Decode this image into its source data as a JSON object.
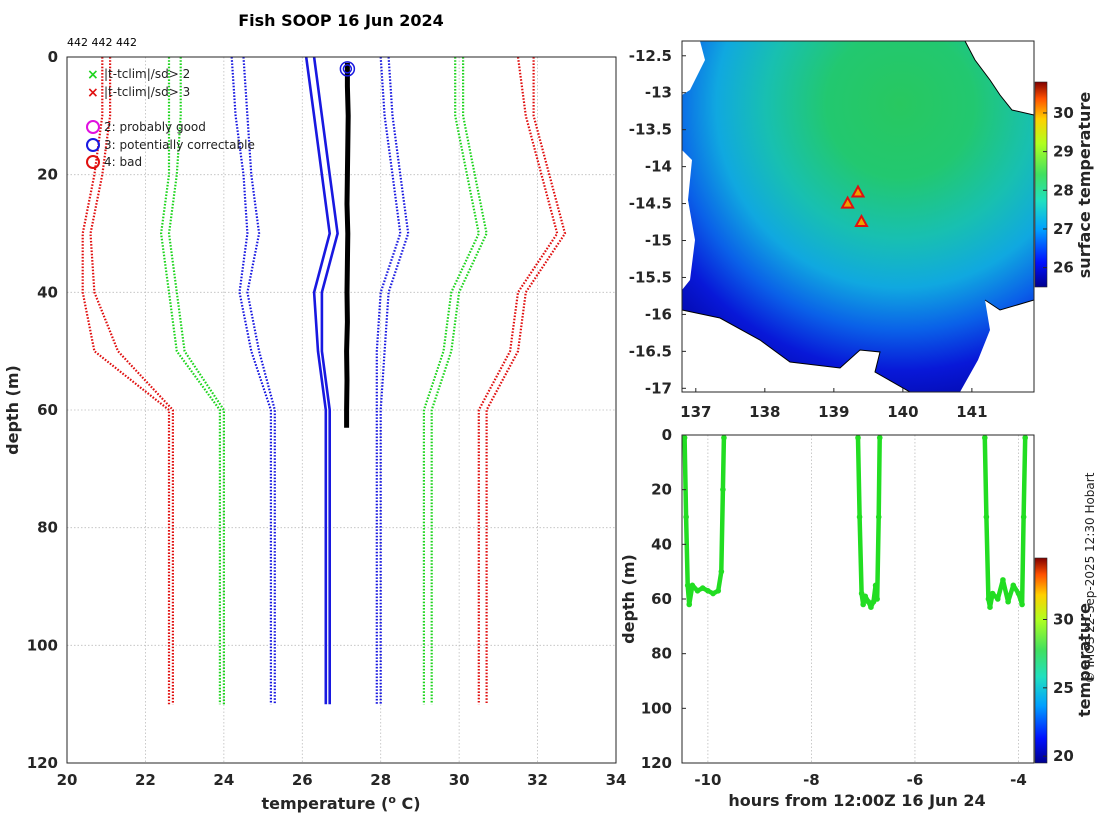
{
  "page": {
    "title": "Fish SOOP 16 Jun 2024",
    "id_text": "442 442 442",
    "credit": "© IMOS 22-Sep-2025 12:30 Hobart"
  },
  "legend": {
    "items": [
      {
        "symbol": "×",
        "color": "#1ed41e",
        "label": "|t-tclim|/sd> 2"
      },
      {
        "symbol": "×",
        "color": "#e01010",
        "label": "|t-tclim|/sd> 3"
      },
      {
        "symbol": "○",
        "color": "#e010e0",
        "label": "2: probably good"
      },
      {
        "symbol": "○",
        "color": "#1818e0",
        "label": "3: potentially correctable"
      },
      {
        "symbol": "○",
        "color": "#e01010",
        "label": "4: bad"
      }
    ]
  },
  "chart_data": [
    {
      "type": "line",
      "name": "profile",
      "xlabel": "temperature (° C)",
      "xlabel_main": "temperature (",
      "xlabel_sup": "o",
      "xlabel_end": " C)",
      "ylabel": "depth (m)",
      "xlim": [
        20,
        34
      ],
      "ylim": [
        120,
        0
      ],
      "xticks": [
        "20",
        "22",
        "24",
        "26",
        "28",
        "30",
        "32",
        "34"
      ],
      "yticks": [
        "0",
        "20",
        "40",
        "60",
        "80",
        "100",
        "120"
      ],
      "grid": true,
      "depths": [
        0,
        10,
        20,
        30,
        40,
        50,
        60,
        110
      ],
      "series": [
        {
          "name": "clim -3sd a",
          "color": "#e01010",
          "style": "dotted",
          "values": [
            20.9,
            20.9,
            20.7,
            20.4,
            20.4,
            20.7,
            22.6,
            22.6
          ]
        },
        {
          "name": "clim -3sd b",
          "color": "#e01010",
          "style": "dotted",
          "values": [
            21.1,
            21.1,
            20.9,
            20.6,
            20.7,
            21.3,
            22.7,
            22.7
          ]
        },
        {
          "name": "clim -2sd a",
          "color": "#1ed41e",
          "style": "dotted",
          "values": [
            22.6,
            22.6,
            22.6,
            22.4,
            22.6,
            22.8,
            23.9,
            23.9
          ]
        },
        {
          "name": "clim -2sd b",
          "color": "#1ed41e",
          "style": "dotted",
          "values": [
            22.9,
            22.9,
            22.8,
            22.6,
            22.8,
            23.0,
            24.0,
            24.0
          ]
        },
        {
          "name": "clim -1sd a",
          "color": "#1818e0",
          "style": "dotted",
          "values": [
            24.2,
            24.3,
            24.5,
            24.6,
            24.4,
            24.7,
            25.2,
            25.2
          ]
        },
        {
          "name": "clim -1sd b",
          "color": "#1818e0",
          "style": "dotted",
          "values": [
            24.5,
            24.6,
            24.7,
            24.9,
            24.6,
            24.9,
            25.3,
            25.3
          ]
        },
        {
          "name": "clim mean a",
          "color": "#1818e0",
          "style": "solid",
          "values": [
            26.1,
            26.3,
            26.5,
            26.7,
            26.3,
            26.4,
            26.6,
            26.6
          ]
        },
        {
          "name": "clim mean b",
          "color": "#1818e0",
          "style": "solid",
          "values": [
            26.3,
            26.5,
            26.7,
            26.9,
            26.5,
            26.5,
            26.7,
            26.7
          ]
        },
        {
          "name": "clim +1sd a",
          "color": "#1818e0",
          "style": "dotted",
          "values": [
            28.0,
            28.1,
            28.3,
            28.5,
            28.0,
            27.9,
            27.9,
            27.9
          ]
        },
        {
          "name": "clim +1sd b",
          "color": "#1818e0",
          "style": "dotted",
          "values": [
            28.2,
            28.3,
            28.5,
            28.7,
            28.2,
            28.1,
            28.0,
            28.0
          ]
        },
        {
          "name": "clim +2sd a",
          "color": "#1ed41e",
          "style": "dotted",
          "values": [
            29.9,
            29.9,
            30.2,
            30.5,
            29.8,
            29.6,
            29.1,
            29.1
          ]
        },
        {
          "name": "clim +2sd b",
          "color": "#1ed41e",
          "style": "dotted",
          "values": [
            30.1,
            30.1,
            30.4,
            30.7,
            30.0,
            29.8,
            29.3,
            29.3
          ]
        },
        {
          "name": "clim +3sd a",
          "color": "#e01010",
          "style": "dotted",
          "values": [
            31.5,
            31.7,
            32.1,
            32.5,
            31.5,
            31.3,
            30.5,
            30.5
          ]
        },
        {
          "name": "clim +3sd b",
          "color": "#e01010",
          "style": "dotted",
          "values": [
            31.9,
            31.9,
            32.3,
            32.7,
            31.7,
            31.5,
            30.7,
            30.7
          ]
        }
      ],
      "observed": {
        "name": "observed profile",
        "color": "#000000",
        "depths": [
          1,
          5,
          10,
          15,
          20,
          25,
          30,
          35,
          40,
          45,
          50,
          55,
          60,
          63
        ],
        "values": [
          27.15,
          27.15,
          27.17,
          27.16,
          27.15,
          27.14,
          27.16,
          27.15,
          27.14,
          27.15,
          27.13,
          27.14,
          27.13,
          27.13
        ]
      },
      "flag_marker": {
        "label": "3: potentially correctable",
        "temperature": 27.15,
        "depth": 1,
        "color": "#1818e0"
      }
    },
    {
      "type": "heatmap",
      "name": "map",
      "colorbar_label": "surface temperature",
      "colorbar_ticks": [
        "26",
        "27",
        "28",
        "29",
        "30"
      ],
      "colorbar_range": [
        25.5,
        30.8
      ],
      "xlim": [
        136.8,
        141.9
      ],
      "ylim": [
        -17.05,
        -12.3
      ],
      "xticks": [
        "137",
        "138",
        "139",
        "140",
        "141"
      ],
      "yticks": [
        "-12.5",
        "-13",
        "-13.5",
        "-14",
        "-14.5",
        "-15",
        "-15.5",
        "-16",
        "-16.5",
        "-17"
      ],
      "markers": [
        {
          "lon": 139.35,
          "lat": -14.35,
          "color": "#e01010"
        },
        {
          "lon": 139.2,
          "lat": -14.5,
          "color": "#e01010"
        },
        {
          "lon": 139.4,
          "lat": -14.75,
          "color": "#e01010"
        }
      ]
    },
    {
      "type": "scatter",
      "name": "depth-time",
      "xlabel": "hours from 12:00Z 16 Jun 24",
      "ylabel": "depth (m)",
      "xlim": [
        -10.5,
        -3.7
      ],
      "ylim": [
        120,
        0
      ],
      "xticks": [
        "-10",
        "-8",
        "-6",
        "-4"
      ],
      "yticks": [
        "0",
        "20",
        "40",
        "60",
        "80",
        "100",
        "120"
      ],
      "colorbar_label": "temperature",
      "colorbar_ticks": [
        "20",
        "25",
        "30"
      ],
      "colorbar_range": [
        19.5,
        34.5
      ],
      "point_color": "#22dd22",
      "casts": [
        {
          "x": [
            -10.45,
            -10.42,
            -10.39,
            -10.36,
            -10.3,
            -10.2,
            -10.1,
            -10.0,
            -9.9,
            -9.8,
            -9.74,
            -9.71,
            -9.69
          ],
          "y": [
            1,
            30,
            55,
            62,
            55,
            57,
            56,
            57,
            58,
            57,
            50,
            20,
            1
          ]
        },
        {
          "x": [
            -7.1,
            -7.07,
            -7.03,
            -7.0,
            -6.96,
            -6.9,
            -6.85,
            -6.8,
            -6.76,
            -6.73,
            -6.7,
            -6.68
          ],
          "y": [
            1,
            30,
            58,
            62,
            59,
            61,
            63,
            61,
            55,
            60,
            30,
            1
          ]
        },
        {
          "x": [
            -4.65,
            -4.62,
            -4.58,
            -4.55,
            -4.5,
            -4.4,
            -4.3,
            -4.2,
            -4.1,
            -4.0,
            -3.93,
            -3.9,
            -3.87
          ],
          "y": [
            1,
            30,
            60,
            63,
            58,
            60,
            53,
            61,
            55,
            58,
            62,
            30,
            1
          ]
        }
      ]
    }
  ]
}
